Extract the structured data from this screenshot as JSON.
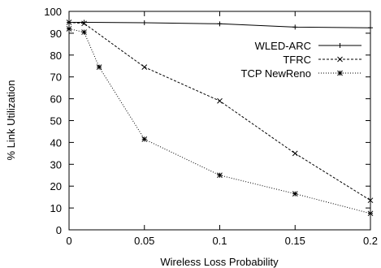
{
  "chart_data": {
    "type": "line",
    "xlabel": "Wireless Loss Probability",
    "ylabel": "% Link Utilization",
    "xlim": [
      0,
      0.2
    ],
    "ylim": [
      0,
      100
    ],
    "x_ticks": [
      0,
      0.05,
      0.1,
      0.15,
      0.2
    ],
    "x_tick_labels": [
      "0",
      "0.05",
      "0.1",
      "0.15",
      "0.2"
    ],
    "y_ticks": [
      0,
      10,
      20,
      30,
      40,
      50,
      60,
      70,
      80,
      90,
      100
    ],
    "y_tick_labels": [
      "0",
      "10",
      "20",
      "30",
      "40",
      "50",
      "60",
      "70",
      "80",
      "90",
      "100"
    ],
    "grid": false,
    "legend_position": "top-right",
    "series": [
      {
        "name": "WLED-ARC",
        "line_style": "solid",
        "marker": "plus",
        "x": [
          0,
          0.01,
          0.05,
          0.1,
          0.15,
          0.2
        ],
        "values": [
          95,
          95,
          94.8,
          94.3,
          92.8,
          92.5
        ]
      },
      {
        "name": "TFRC",
        "line_style": "dashed",
        "marker": "cross",
        "x": [
          0,
          0.01,
          0.05,
          0.1,
          0.15,
          0.2
        ],
        "values": [
          95,
          94.5,
          74.5,
          59,
          35,
          13.5
        ]
      },
      {
        "name": "TCP NewReno",
        "line_style": "dotted",
        "marker": "star",
        "x": [
          0,
          0.01,
          0.02,
          0.05,
          0.1,
          0.15,
          0.2
        ],
        "values": [
          92,
          90.5,
          74.5,
          41.5,
          25,
          16.5,
          7.5
        ]
      }
    ]
  }
}
